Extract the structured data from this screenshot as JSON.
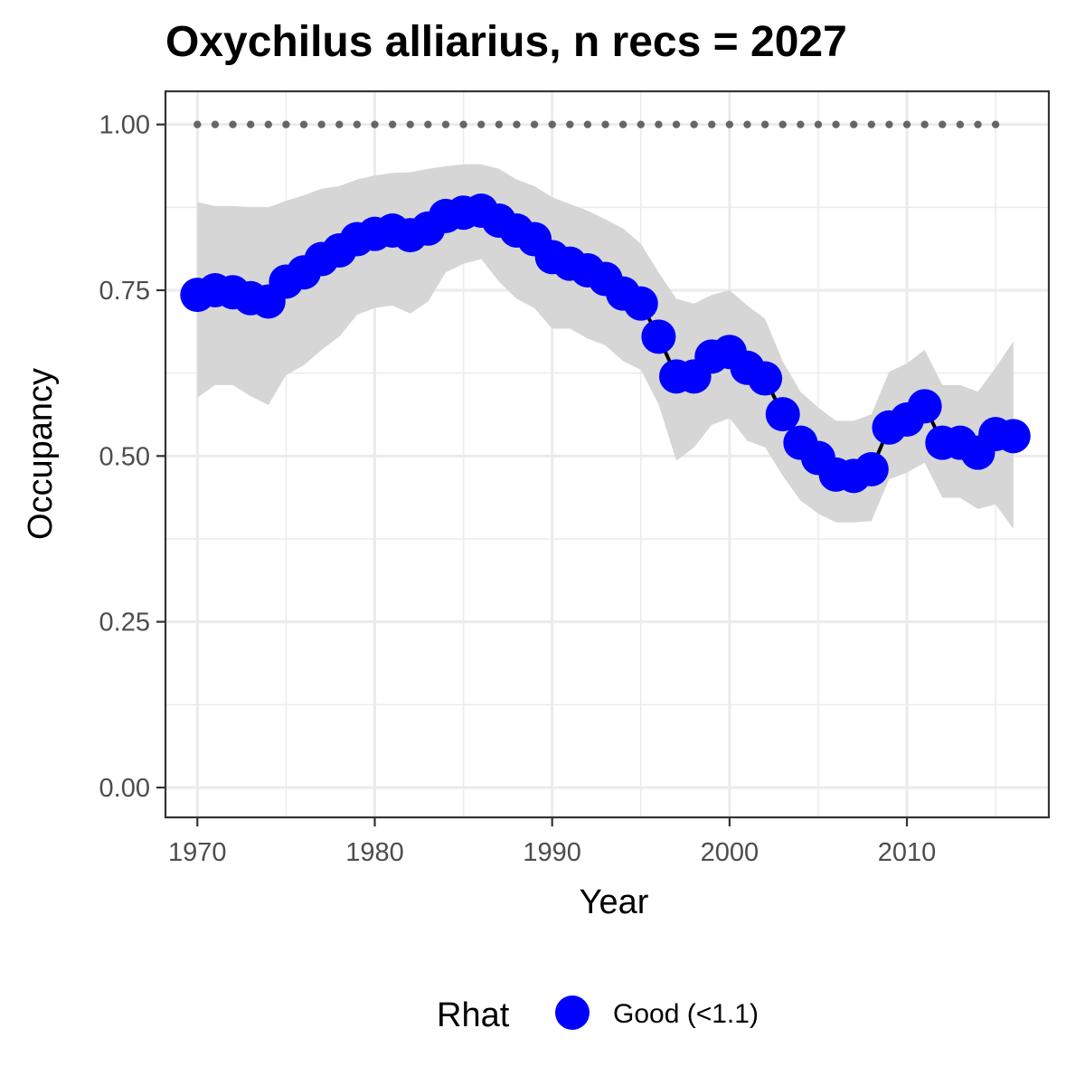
{
  "chart_data": {
    "type": "line",
    "title": "Oxychilus alliarius, n recs = 2027",
    "xlabel": "Year",
    "ylabel": "Occupancy",
    "xlim": [
      1968.2,
      2018.0
    ],
    "ylim": [
      -0.045,
      1.05
    ],
    "x_ticks": [
      1970,
      1980,
      1990,
      2000,
      2010
    ],
    "x_tick_labels": [
      "1970",
      "1980",
      "1990",
      "2000",
      "2010"
    ],
    "y_ticks": [
      0,
      0.25,
      0.5,
      0.75,
      1.0
    ],
    "y_tick_labels": [
      "0.00",
      "0.25",
      "0.50",
      "0.75",
      "1.00"
    ],
    "y_minor_ticks": [
      0.125,
      0.375,
      0.625,
      0.875
    ],
    "x_minor_ticks": [
      1975,
      1985,
      1995,
      2005,
      2015
    ],
    "grid": true,
    "legend": {
      "title": "Rhat",
      "placement": "bottom",
      "entries": [
        {
          "label": "Good (<1.1)",
          "color": "#0000ff"
        }
      ]
    },
    "colors": {
      "points": "#0000ff",
      "line": "#000000",
      "ribbon": "#d6d6d6",
      "dotted": "#666666",
      "grid": "#ebebeb",
      "panel_border": "#333333"
    },
    "reference_line": {
      "y": 1.0,
      "x_from": 1970,
      "x_to": 2015,
      "style": "dotted"
    },
    "series": [
      {
        "x": [
          1970,
          1971,
          1972,
          1973,
          1974,
          1975,
          1976,
          1977,
          1978,
          1979,
          1980,
          1981,
          1982,
          1983,
          1984,
          1985,
          1986,
          1987,
          1988,
          1989,
          1990,
          1991,
          1992,
          1993,
          1994,
          1995,
          1996,
          1997,
          1998,
          1999,
          2000,
          2001,
          2002,
          2003,
          2004,
          2005,
          2006,
          2007,
          2008,
          2009,
          2010,
          2011,
          2012,
          2013,
          2014,
          2015,
          2016
        ],
        "values": [
          0.743,
          0.75,
          0.747,
          0.738,
          0.733,
          0.763,
          0.777,
          0.797,
          0.81,
          0.827,
          0.835,
          0.84,
          0.833,
          0.843,
          0.862,
          0.867,
          0.87,
          0.855,
          0.84,
          0.827,
          0.8,
          0.79,
          0.78,
          0.767,
          0.745,
          0.73,
          0.68,
          0.62,
          0.62,
          0.65,
          0.657,
          0.633,
          0.617,
          0.563,
          0.52,
          0.497,
          0.472,
          0.47,
          0.48,
          0.543,
          0.555,
          0.575,
          0.52,
          0.52,
          0.505,
          0.533,
          0.53
        ],
        "lower": [
          0.588,
          0.607,
          0.607,
          0.59,
          0.577,
          0.622,
          0.637,
          0.66,
          0.68,
          0.713,
          0.723,
          0.727,
          0.715,
          0.733,
          0.777,
          0.79,
          0.797,
          0.763,
          0.737,
          0.723,
          0.692,
          0.692,
          0.677,
          0.667,
          0.643,
          0.63,
          0.578,
          0.493,
          0.513,
          0.547,
          0.557,
          0.523,
          0.513,
          0.47,
          0.433,
          0.413,
          0.4,
          0.4,
          0.402,
          0.465,
          0.475,
          0.49,
          0.437,
          0.437,
          0.42,
          0.427,
          0.39
        ],
        "upper": [
          0.883,
          0.877,
          0.877,
          0.875,
          0.875,
          0.885,
          0.893,
          0.903,
          0.907,
          0.917,
          0.923,
          0.927,
          0.928,
          0.933,
          0.937,
          0.94,
          0.94,
          0.933,
          0.917,
          0.907,
          0.89,
          0.88,
          0.87,
          0.857,
          0.843,
          0.82,
          0.777,
          0.737,
          0.73,
          0.743,
          0.75,
          0.727,
          0.707,
          0.643,
          0.597,
          0.573,
          0.553,
          0.553,
          0.563,
          0.627,
          0.64,
          0.66,
          0.607,
          0.607,
          0.597,
          0.633,
          0.673
        ]
      }
    ]
  }
}
